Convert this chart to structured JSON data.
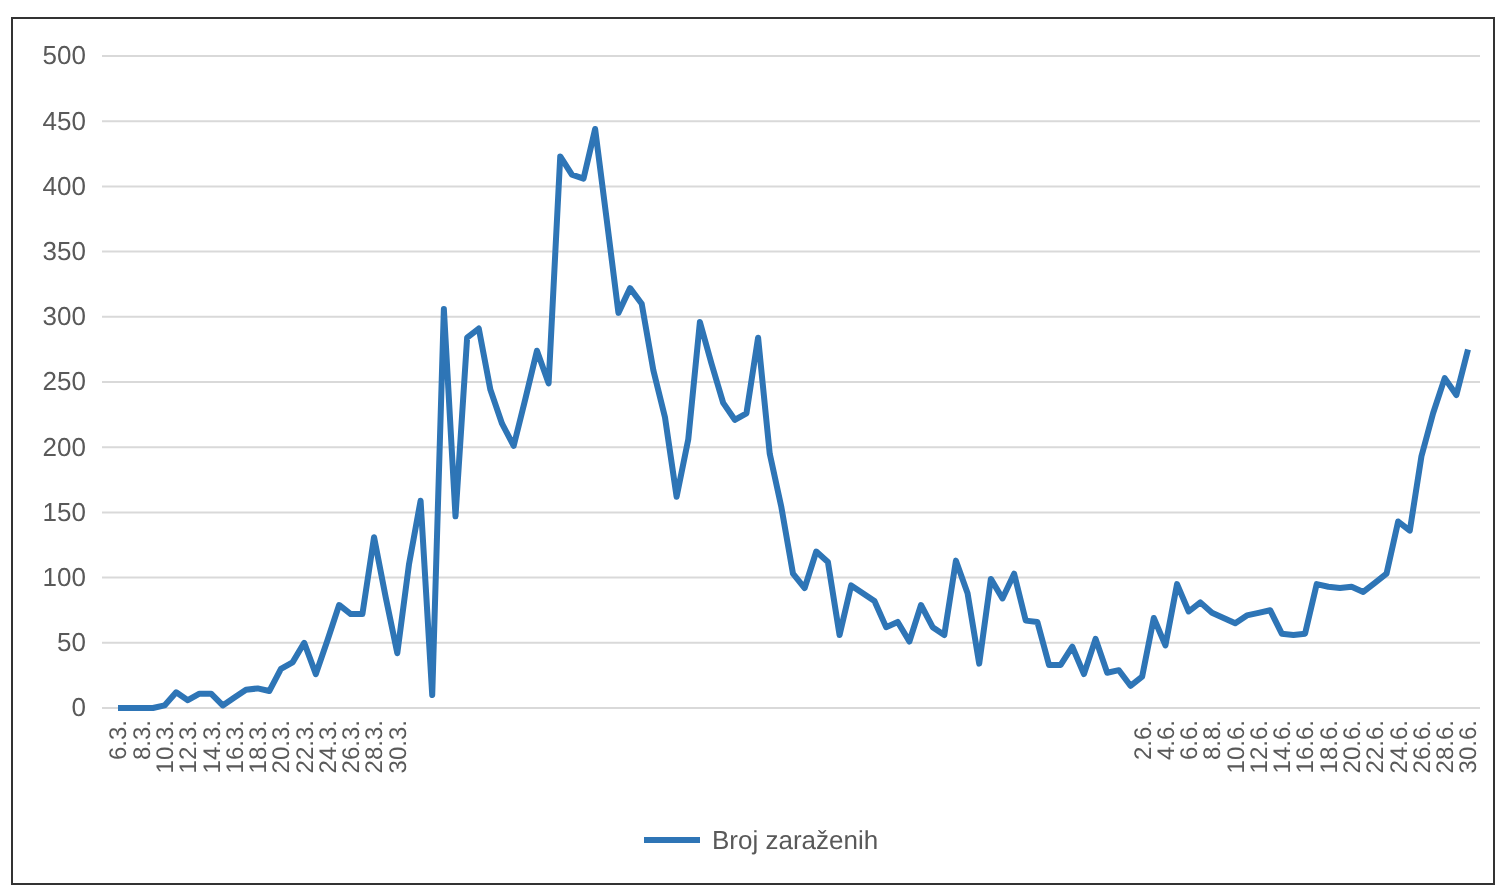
{
  "chart_data": {
    "type": "line",
    "categories": [
      "6.3.",
      null,
      "8.3.",
      null,
      "10.3.",
      null,
      "12.3.",
      null,
      "14.3.",
      null,
      "16.3.",
      null,
      "18.3.",
      null,
      "20.3.",
      null,
      "22.3.",
      null,
      "24.3.",
      null,
      "26.3.",
      null,
      "28.3.",
      null,
      "30.3.",
      null,
      null,
      null,
      null,
      null,
      null,
      null,
      null,
      null,
      null,
      null,
      null,
      null,
      null,
      null,
      null,
      null,
      null,
      null,
      null,
      null,
      null,
      null,
      null,
      null,
      null,
      null,
      null,
      null,
      null,
      null,
      null,
      null,
      null,
      null,
      null,
      null,
      null,
      null,
      null,
      null,
      null,
      null,
      null,
      null,
      null,
      null,
      null,
      null,
      null,
      null,
      null,
      null,
      null,
      null,
      null,
      null,
      null,
      null,
      null,
      null,
      null,
      null,
      "2.6.",
      null,
      "4.6.",
      null,
      "6.6.",
      null,
      "8.8.",
      null,
      "10.6.",
      null,
      "12.6.",
      null,
      "14.6.",
      null,
      "16.6.",
      null,
      "18.6.",
      null,
      "20.6.",
      null,
      "22.6.",
      null,
      "24.6.",
      null,
      "26.6.",
      null,
      "28.6.",
      null,
      "30.6."
    ],
    "series": [
      {
        "name": "Broj zaraženih",
        "color": "#2e75b6",
        "values": [
          0,
          0,
          0,
          0,
          2,
          12,
          6,
          11,
          11,
          2,
          8,
          14,
          15,
          13,
          30,
          35,
          50,
          26,
          52,
          79,
          72,
          72,
          131,
          85,
          42,
          110,
          159,
          10,
          306,
          147,
          284,
          291,
          244,
          218,
          201,
          237,
          274,
          249,
          423,
          409,
          406,
          444,
          374,
          303,
          322,
          310,
          259,
          223,
          162,
          206,
          296,
          264,
          234,
          221,
          226,
          284,
          195,
          154,
          103,
          92,
          120,
          112,
          56,
          94,
          88,
          82,
          62,
          66,
          51,
          79,
          62,
          56,
          113,
          88,
          34,
          99,
          84,
          103,
          67,
          66,
          33,
          33,
          47,
          26,
          53,
          27,
          29,
          17,
          24,
          69,
          48,
          95,
          74,
          81,
          73,
          69,
          65,
          71,
          73,
          75,
          57,
          56,
          57,
          95,
          93,
          92,
          93,
          89,
          96,
          103,
          143,
          136,
          193,
          226,
          253,
          240,
          275
        ]
      }
    ],
    "ylim": [
      0,
      500
    ],
    "yticks": [
      0,
      50,
      100,
      150,
      200,
      250,
      300,
      350,
      400,
      450,
      500
    ],
    "grid": "y",
    "legend": "bottom",
    "marker": "none",
    "line_style": "solid"
  }
}
